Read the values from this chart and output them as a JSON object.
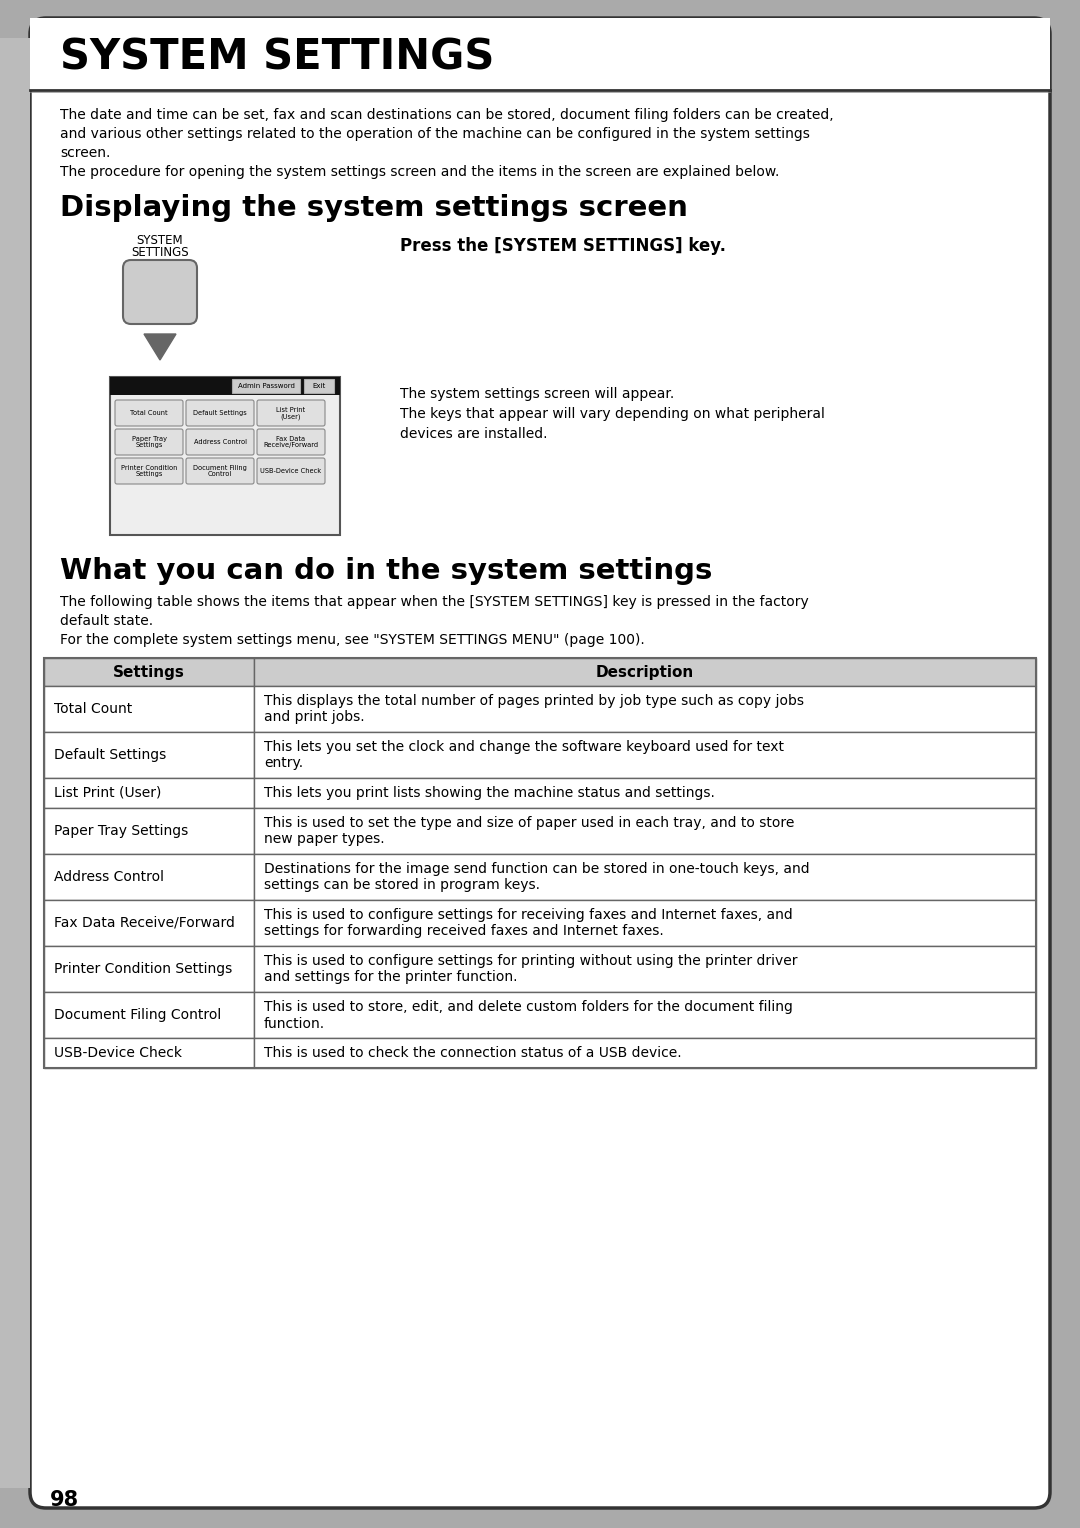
{
  "title": "SYSTEM SETTINGS",
  "bg_color": "#ffffff",
  "page_number": "98",
  "intro_text_lines": [
    "The date and time can be set, fax and scan destinations can be stored, document filing folders can be created,",
    "and various other settings related to the operation of the machine can be configured in the system settings",
    "screen.",
    "The procedure for opening the system settings screen and the items in the screen are explained below."
  ],
  "section1_title": "Displaying the system settings screen",
  "key_label_line1": "SYSTEM",
  "key_label_line2": "SETTINGS",
  "press_text": "Press the [SYSTEM SETTINGS] key.",
  "screen_appear_lines": [
    "The system settings screen will appear.",
    "The keys that appear will vary depending on what peripheral",
    "devices are installed."
  ],
  "screen_buttons": [
    [
      "Total Count",
      "Default Settings",
      "List Print\n(User)"
    ],
    [
      "Paper Tray\nSettings",
      "Address Control",
      "Fax Data\nReceive/Forward"
    ],
    [
      "Printer Condition\nSettings",
      "Document Filing\nControl",
      "USB-Device Check"
    ]
  ],
  "screen_header_btns": [
    "Admin Password",
    "Exit"
  ],
  "section2_title": "What you can do in the system settings",
  "table_intro_lines": [
    "The following table shows the items that appear when the [SYSTEM SETTINGS] key is pressed in the factory",
    "default state.",
    "For the complete system settings menu, see \"SYSTEM SETTINGS MENU\" (page 100)."
  ],
  "table_header": [
    "Settings",
    "Description"
  ],
  "table_rows": [
    [
      "Total Count",
      "This displays the total number of pages printed by job type such as copy jobs\nand print jobs."
    ],
    [
      "Default Settings",
      "This lets you set the clock and change the software keyboard used for text\nentry."
    ],
    [
      "List Print (User)",
      "This lets you print lists showing the machine status and settings."
    ],
    [
      "Paper Tray Settings",
      "This is used to set the type and size of paper used in each tray, and to store\nnew paper types."
    ],
    [
      "Address Control",
      "Destinations for the image send function can be stored in one-touch keys, and\nsettings can be stored in program keys."
    ],
    [
      "Fax Data Receive/Forward",
      "This is used to configure settings for receiving faxes and Internet faxes, and\nsettings for forwarding received faxes and Internet faxes."
    ],
    [
      "Printer Condition Settings",
      "This is used to configure settings for printing without using the printer driver\nand settings for the printer function."
    ],
    [
      "Document Filing Control",
      "This is used to store, edit, and delete custom folders for the document filing\nfunction."
    ],
    [
      "USB-Device Check",
      "This is used to check the connection status of a USB device."
    ]
  ],
  "header_bg": "#cccccc",
  "table_border": "#666666",
  "outer_border": "#333333",
  "outer_bg": "#aaaaaa",
  "gray_sidebar_color": "#bbbbbb"
}
